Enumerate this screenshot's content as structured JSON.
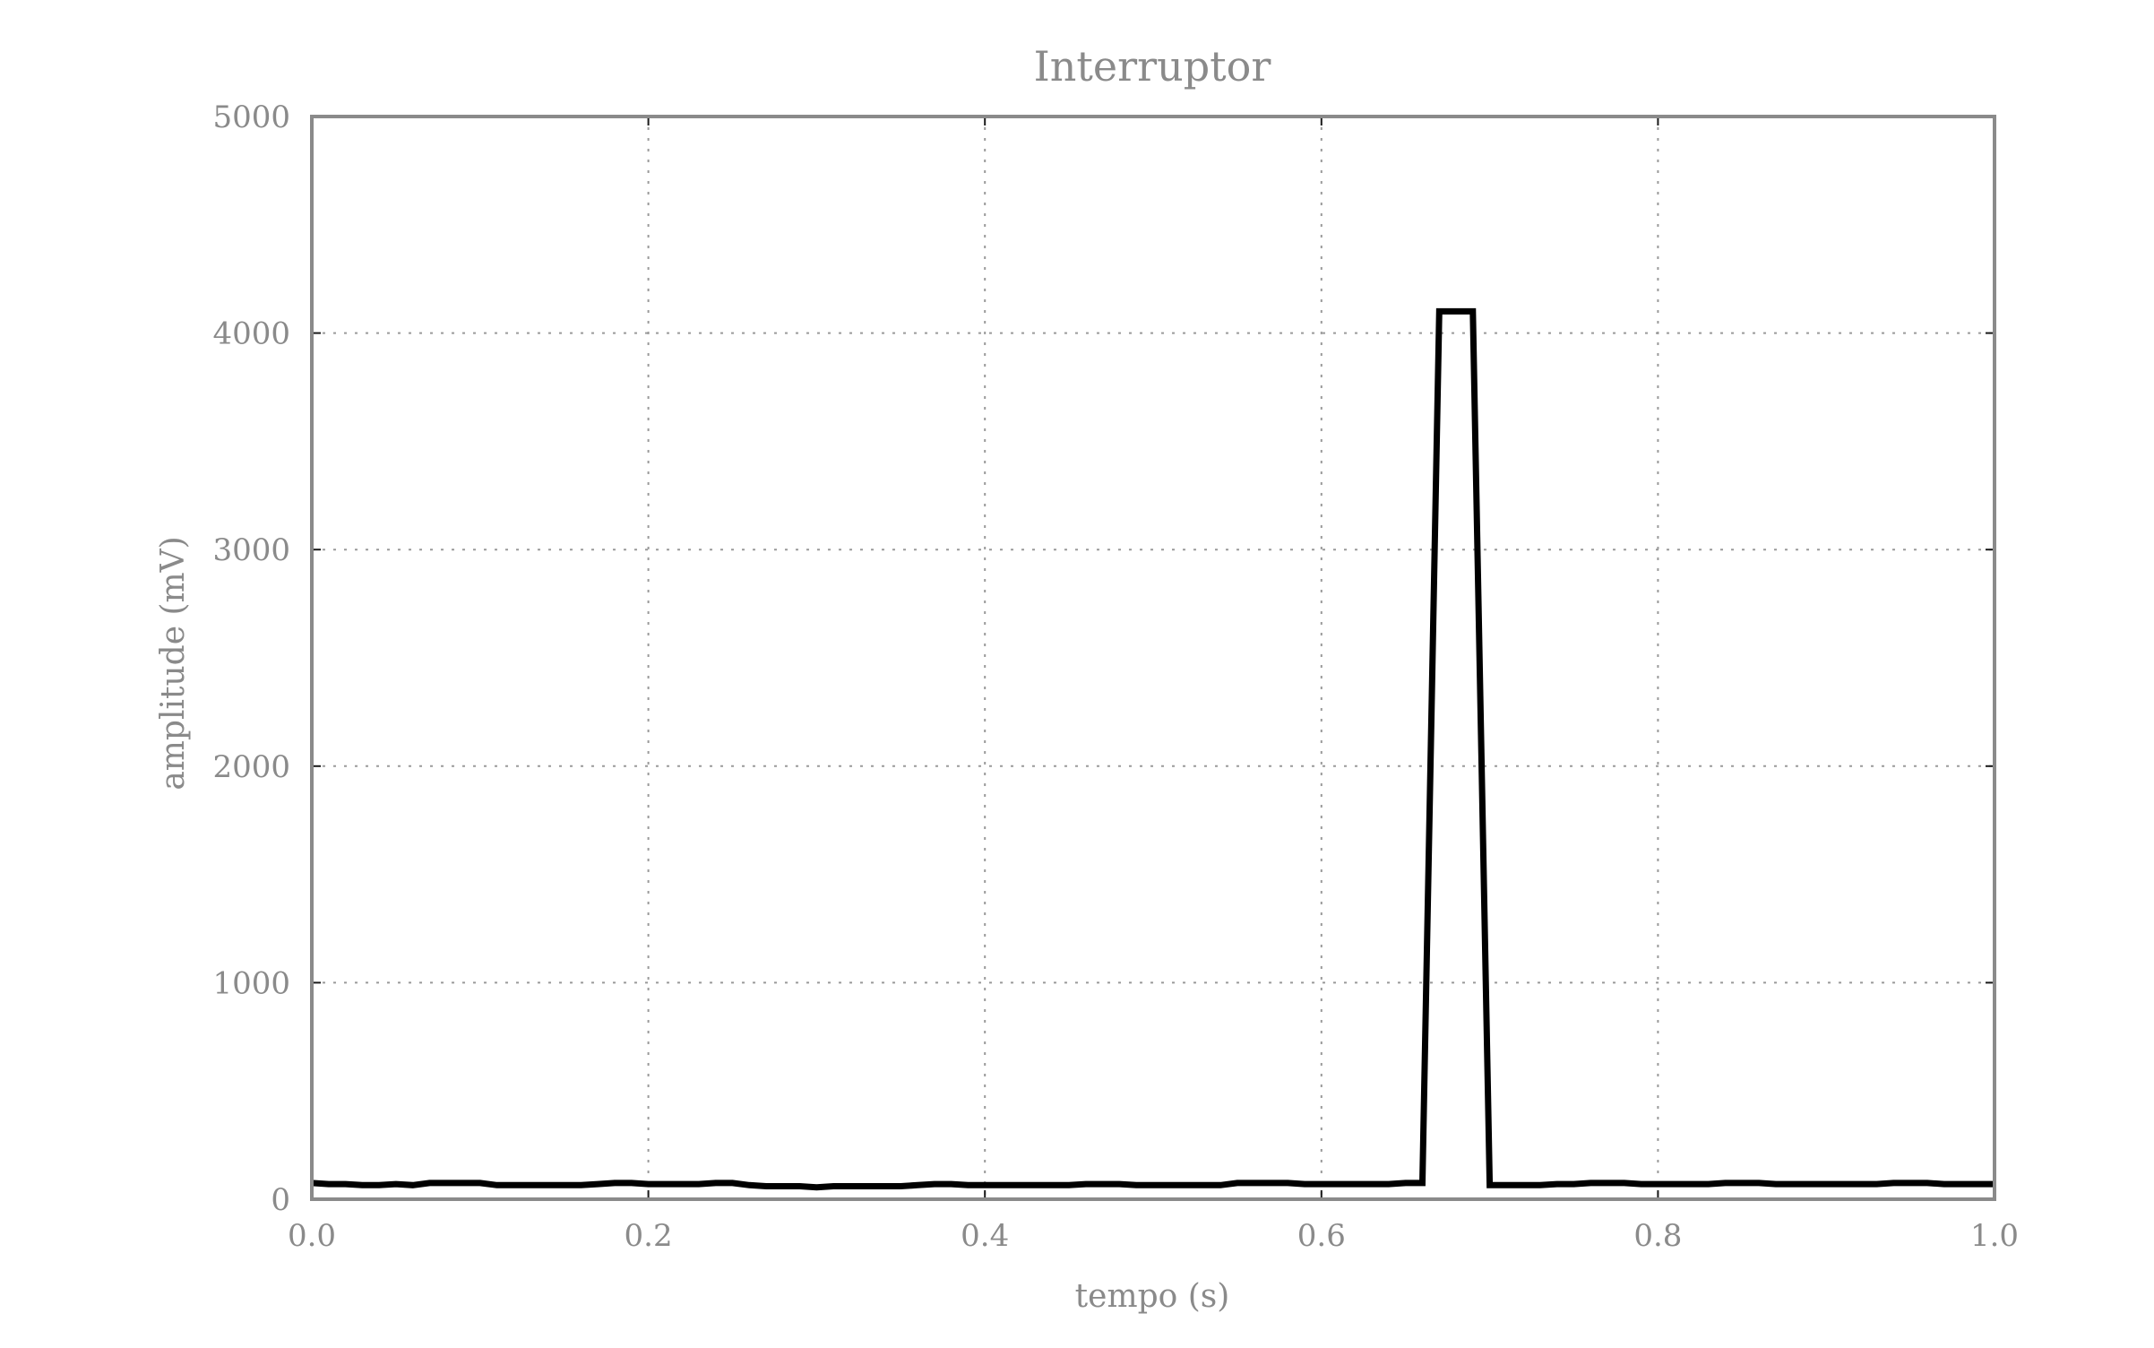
{
  "chart_data": {
    "type": "line",
    "title": "Interruptor",
    "xlabel": "tempo (s)",
    "ylabel": "amplitude (mV)",
    "xlim": [
      0.0,
      1.0
    ],
    "ylim": [
      0,
      5000
    ],
    "x_ticks": [
      "0.0",
      "0.2",
      "0.4",
      "0.6",
      "0.8",
      "1.0"
    ],
    "y_ticks": [
      "0",
      "1000",
      "2000",
      "3000",
      "4000",
      "5000"
    ],
    "grid": true,
    "grid_style": "dotted",
    "legend": "none",
    "series_color": "#000000",
    "text_color": "#8a8a8a",
    "series": [
      {
        "x": [
          0.0,
          0.01,
          0.02,
          0.03,
          0.04,
          0.05,
          0.06,
          0.07,
          0.08,
          0.09,
          0.1,
          0.11,
          0.12,
          0.13,
          0.14,
          0.15,
          0.16,
          0.17,
          0.18,
          0.19,
          0.2,
          0.21,
          0.22,
          0.23,
          0.24,
          0.25,
          0.26,
          0.27,
          0.28,
          0.29,
          0.3,
          0.31,
          0.32,
          0.33,
          0.34,
          0.35,
          0.36,
          0.37,
          0.38,
          0.39,
          0.4,
          0.41,
          0.42,
          0.43,
          0.44,
          0.45,
          0.46,
          0.47,
          0.48,
          0.49,
          0.5,
          0.51,
          0.52,
          0.53,
          0.54,
          0.55,
          0.56,
          0.57,
          0.58,
          0.59,
          0.6,
          0.61,
          0.62,
          0.63,
          0.64,
          0.65,
          0.66,
          0.67,
          0.68,
          0.69,
          0.7,
          0.71,
          0.72,
          0.73,
          0.74,
          0.75,
          0.76,
          0.77,
          0.78,
          0.79,
          0.8,
          0.81,
          0.82,
          0.83,
          0.84,
          0.85,
          0.86,
          0.87,
          0.88,
          0.89,
          0.9,
          0.91,
          0.92,
          0.93,
          0.94,
          0.95,
          0.96,
          0.97,
          0.98,
          0.99,
          1.0
        ],
        "y": [
          75,
          70,
          70,
          65,
          65,
          70,
          65,
          75,
          75,
          75,
          75,
          65,
          65,
          65,
          65,
          65,
          65,
          70,
          75,
          75,
          70,
          70,
          70,
          70,
          75,
          75,
          65,
          60,
          60,
          60,
          55,
          60,
          60,
          60,
          60,
          60,
          65,
          70,
          70,
          65,
          65,
          65,
          65,
          65,
          65,
          65,
          70,
          70,
          70,
          65,
          65,
          65,
          65,
          65,
          65,
          75,
          75,
          75,
          75,
          70,
          70,
          70,
          70,
          70,
          70,
          75,
          75,
          4100,
          4100,
          4100,
          65,
          65,
          65,
          65,
          70,
          70,
          75,
          75,
          75,
          70,
          70,
          70,
          70,
          70,
          75,
          75,
          75,
          70,
          70,
          70,
          70,
          70,
          70,
          70,
          75,
          75,
          75,
          70,
          70,
          70,
          70
        ]
      }
    ]
  }
}
